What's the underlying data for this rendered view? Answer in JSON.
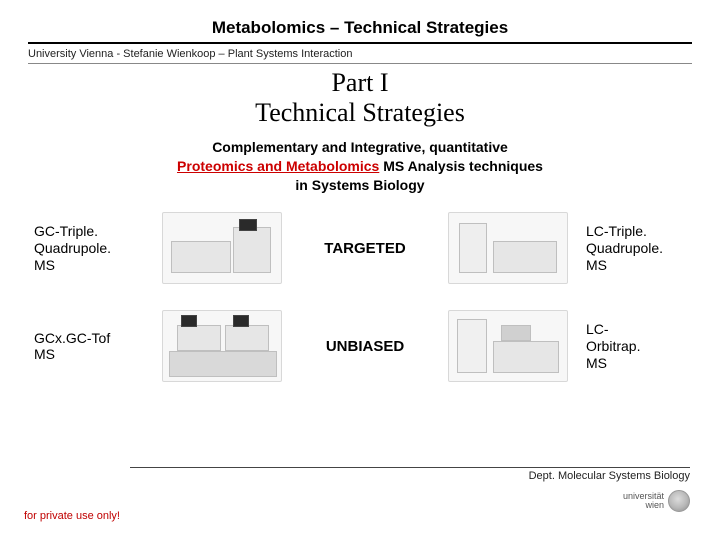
{
  "title": "Metabolomics –  Technical Strategies",
  "subheader": "University Vienna - Stefanie Wienkoop – Plant Systems Interaction",
  "part_line1": "Part I",
  "part_line2": "Technical Strategies",
  "intro_line1": "Complementary and Integrative, quantitative",
  "intro_red": "Proteomics and Metabolomics",
  "intro_after_red": " MS Analysis techniques",
  "intro_line3": "in Systems Biology",
  "rows": [
    {
      "left": "GC-Triple.\nQuadrupole.\nMS",
      "center": "TARGETED",
      "right": "LC-Triple.\nQuadrupole.\nMS"
    },
    {
      "left": "GCx.GC-Tof\nMS",
      "center": "UNBIASED",
      "right": "LC-\nOrbitrap.\nMS"
    }
  ],
  "footer_dept": "Dept. Molecular Systems Biology",
  "logo_text": "universität\nwien",
  "private_note": "for private use only!",
  "colors": {
    "accent_red": "#cc0000",
    "private_red": "#c00000",
    "text": "#000000",
    "bg": "#ffffff"
  }
}
